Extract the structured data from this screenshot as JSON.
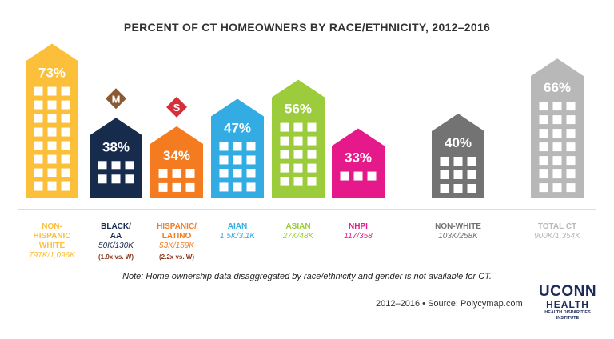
{
  "chart_data": {
    "type": "bar",
    "title": "PERCENT OF CT HOMEOWNERS BY RACE/ETHNICITY, 2012–2016",
    "ylim": [
      0,
      100
    ],
    "categories": [
      {
        "label": "NON-HISPANIC WHITE",
        "lines": [
          "NON-",
          "HISPANIC",
          "WHITE"
        ],
        "counts": "797K/1,096K",
        "ratio": "",
        "value": 73,
        "value_label": "73%",
        "color": "#fbbf3a"
      },
      {
        "label": "BLACK/AA",
        "lines": [
          "BLACK/",
          "AA"
        ],
        "counts": "50K/130K",
        "ratio": "(1.9x vs. W)",
        "value": 38,
        "value_label": "38%",
        "color": "#172b4d",
        "badge": "M",
        "badge_color": "#8a5a33"
      },
      {
        "label": "HISPANIC/LATINO",
        "lines": [
          "HISPANIC/",
          "LATINO"
        ],
        "counts": "53K/159K",
        "ratio": "(2.2x vs. W)",
        "value": 34,
        "value_label": "34%",
        "color": "#f47b20",
        "badge": "S",
        "badge_color": "#d62f3a"
      },
      {
        "label": "AIAN",
        "lines": [
          "AIAN"
        ],
        "counts": "1.5K/3.1K",
        "ratio": "",
        "value": 47,
        "value_label": "47%",
        "color": "#33ace3"
      },
      {
        "label": "ASIAN",
        "lines": [
          "ASIAN"
        ],
        "counts": "27K/48K",
        "ratio": "",
        "value": 56,
        "value_label": "56%",
        "color": "#9ccb3c"
      },
      {
        "label": "NHPI",
        "lines": [
          "NHPI"
        ],
        "counts": "117/358",
        "ratio": "",
        "value": 33,
        "value_label": "33%",
        "color": "#e5198a"
      },
      {
        "label": "NON-WHITE",
        "lines": [
          "NON-WHITE"
        ],
        "counts": "103K/258K",
        "ratio": "",
        "value": 40,
        "value_label": "40%",
        "color": "#737373"
      },
      {
        "label": "TOTAL CT",
        "lines": [
          "TOTAL CT"
        ],
        "counts": "900K/1,354K",
        "ratio": "",
        "value": 66,
        "value_label": "66%",
        "color": "#b8b8b8"
      }
    ]
  },
  "note": "Note: Home ownership data disaggregated by race/ethnicity and gender is not available for CT.",
  "source": "2012–2016 •  Source: Polycymap.com",
  "logo": {
    "line1": "UCONN",
    "line2": "HEALTH",
    "line3a": "HEALTH DISPARITIES",
    "line3b": "INSTITUTE"
  },
  "colors": {
    "label_ratio": "#8a3a1f",
    "divider": "#bbbbbb"
  }
}
